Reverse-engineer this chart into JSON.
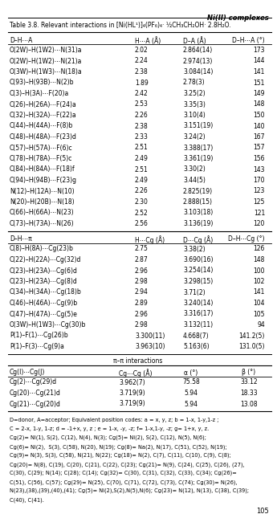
{
  "header_italic": "Ni(II) complexes",
  "title": "Table 3.8. Relevant interactions in [Ni(HL¹)]₄(PF₆)₄· ½CH₃CH₂OH· 2.8H₂O.",
  "section1_header": [
    "D–H⋯A",
    "H⋯A (Å)",
    "D–A (Å)",
    "D–H⋯A (°)"
  ],
  "section1_rows": [
    [
      "O(2W)–H(1W2)⋯N(31)a",
      "2.02",
      "2.864(14)",
      "173"
    ],
    [
      "O(2W)–H(1W2)⋯N(21)a",
      "2.24",
      "2.974(13)",
      "144"
    ],
    [
      "O(3W)–H(1W3)⋯N(18)a",
      "2.38",
      "3.084(14)",
      "141"
    ],
    [
      "C(93)–H(93B)⋯N(2)b",
      "1.89",
      "2.78(3)",
      "151"
    ],
    [
      "C(3)–H(3A)⋯F(20)a",
      "2.42",
      "3.25(2)",
      "149"
    ],
    [
      "C(26)–H(26A)⋯F(24)a",
      "2.53",
      "3.35(3)",
      "148"
    ],
    [
      "C(32)–H(32A)⋯F(22)a",
      "2.26",
      "3.10(4)",
      "150"
    ],
    [
      "C(44)–H(44A)⋯F(8)b",
      "2.38",
      "3.151(19)",
      "140"
    ],
    [
      "C(48)–H(48A)⋯F(23)d",
      "2.33",
      "3.24(2)",
      "167"
    ],
    [
      "C(57)–H(57A)⋯F(6)c",
      "2.51",
      "3.388(17)",
      "157"
    ],
    [
      "C(78)–H(78A)⋯F(5)c",
      "2.49",
      "3.361(19)",
      "156"
    ],
    [
      "C(84)–H(84A)⋯F(18)f",
      "2.51",
      "3.30(2)",
      "143"
    ],
    [
      "C(94)–H(94B)⋯F(23)g",
      "2.49",
      "3.44(5)",
      "170"
    ],
    [
      "N(12)–H(12A)⋯N(10)",
      "2.26",
      "2.825(19)",
      "123"
    ],
    [
      "N(20)–H(20B)⋯N(18)",
      "2.30",
      "2.888(15)",
      "125"
    ],
    [
      "C(66)–H(66A)⋯N(23)",
      "2.52",
      "3.103(18)",
      "121"
    ],
    [
      "C(73)–H(73A)⋯N(26)",
      "2.56",
      "3.136(19)",
      "120"
    ]
  ],
  "section2_header": [
    "D–H⋯π",
    "H⋯Cg (Å)",
    "D⋯Cg (Å)",
    "D–H⋯Cg (°)"
  ],
  "section2_rows": [
    [
      "C(8)–H(8A)⋯Cg(23)b",
      "2.75",
      "3.38(2)",
      "126"
    ],
    [
      "C(22)–H(22A)⋯Cg(32)d",
      "2.87",
      "3.690(16)",
      "148"
    ],
    [
      "C(23)–H(23A)⋯Cg(6)d",
      "2.96",
      "3.254(14)",
      "100"
    ],
    [
      "C(23)–H(23A)⋯Cg(8)d",
      "2.98",
      "3.298(15)",
      "102"
    ],
    [
      "C(34)–H(34A)⋯Cg(18)b",
      "2.94",
      "3.71(2)",
      "141"
    ],
    [
      "C(46)–H(46A)⋯Cg(9)b",
      "2.89",
      "3.240(14)",
      "104"
    ],
    [
      "C(47)–H(47A)⋯Cg(5)e",
      "2.96",
      "3.316(17)",
      "105"
    ],
    [
      "O(3W)–H(1W3)⋯Cg(30)b",
      "2.98",
      "3.132(11)",
      "94"
    ],
    [
      "P(1)–F(1)⋯Cg(26)b",
      "3.300(11)",
      "4.668(7)",
      "141.2(5)"
    ],
    [
      "P(1)–F(3)⋯Cg(9)a",
      "3.963(10)",
      "5.163(6)",
      "131.0(5)"
    ]
  ],
  "section3_title": "π–π interactions",
  "section3_header": [
    "Cg(I)⋯Cg(J)",
    "Cg⋯Cg (Å)",
    "α (°)",
    "β (°)"
  ],
  "section3_rows": [
    [
      "Cg(2)⋯Cg(29)d",
      "3.962(7)",
      "75.58",
      "33.12"
    ],
    [
      "Cg(20)⋯Cg(21)d",
      "3.719(9)",
      "5.94",
      "18.33"
    ],
    [
      "Cg(21)⋯Cg(20)d",
      "3.719(9)",
      "5.94",
      "13.08"
    ]
  ],
  "footnote_lines": [
    "D=donor, A=acceptor; Equivalent position codes: a = x, y, z; b = 1-x, 1-y,1-z ;",
    "C = 2-x, 1-y, 1-z; d = -1+x, y, z ; e = 1-x, -y, -z; f= 1-x,1-y, -z; g= 1+x, y, z.",
    "Cg(2)= Ni(1), S(2), C(12), N(4), N(3); Cg(5)= Ni(2), S(2), C(12), N(5), N(6);",
    "Cg(6)= Ni(2),  S(3), C(58), N(20), N(19); Cg(8)= Na(2), N(17), C(51), C(52), N(19);",
    "Cg(9)= N(3), S(3), C(58), N(21), N(22); Cg(18)= N(2), C(7), C(11), C(10), C(9), C(8);",
    "Cg(20)= N(8), C(19), C(20), C(21), C(22), C(23); Cg(21)= N(9), C(24), C(25), C(26), (27),",
    "C(30), C(29); N(14); C(28); C(14); Cg(32)= C(30), C(31), C(32), C(33), C(34); Cg(26)=",
    "C(51), C(56), C(57); Cg(29)= N(25), C(70), C(71), C(72), C(73), C(74); Cg(30)= N(26),",
    "N(23),(38),(39),(40),(41); Cg(5)= Ni(2),S(2),N(5),N(6); Cg(23)= N(12), N(13), C(38), C(39);",
    "C(40), C(41)."
  ],
  "page_number": "105"
}
